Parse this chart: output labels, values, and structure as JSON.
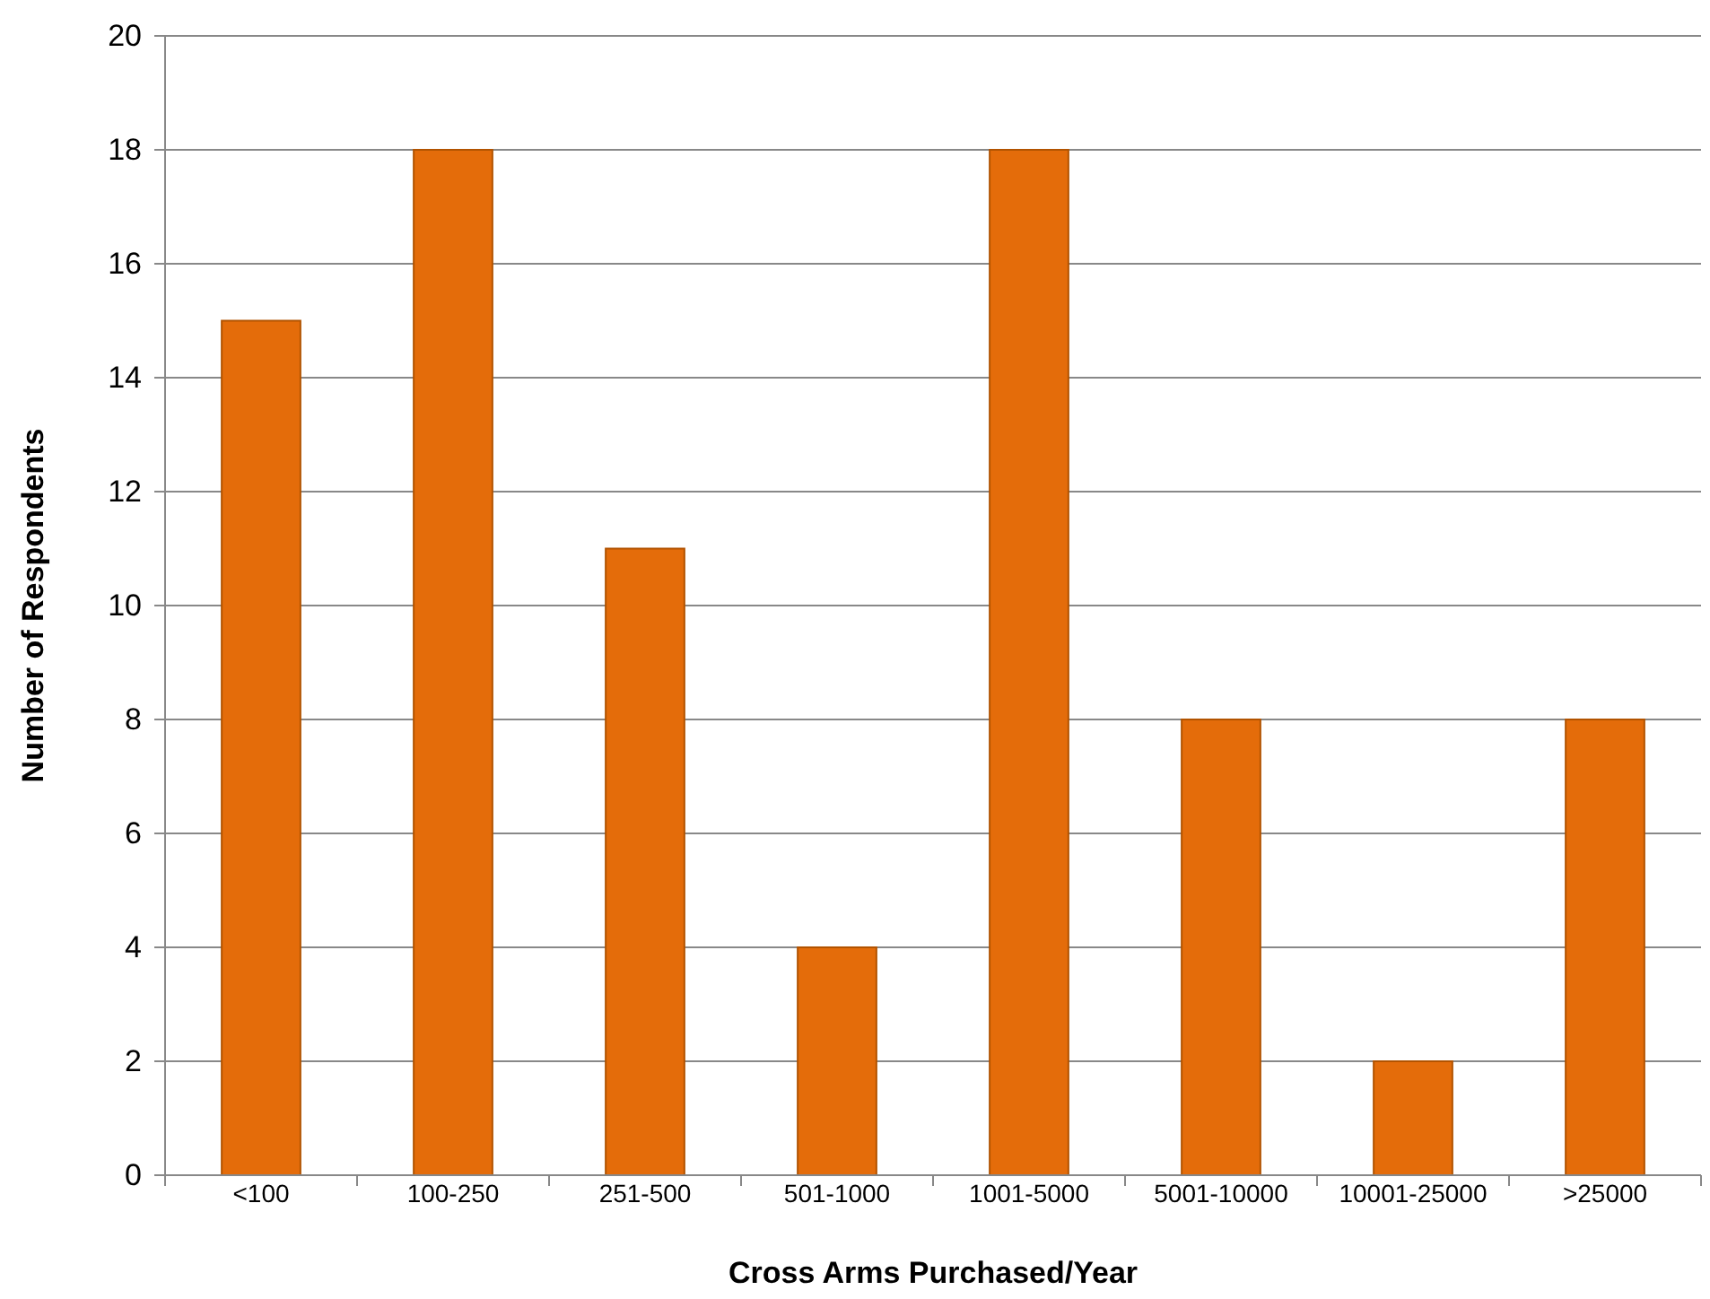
{
  "chart_data": {
    "type": "bar",
    "xlabel": "Cross Arms Purchased/Year",
    "ylabel": "Number of Respondents",
    "categories": [
      "<100",
      "100-250",
      "251-500",
      "501-1000",
      "1001-5000",
      "5001-10000",
      "10001-25000",
      ">25000"
    ],
    "values": [
      15,
      18,
      11,
      4,
      18,
      8,
      2,
      8
    ],
    "color": "#e46c0a",
    "ylim": [
      0,
      20
    ],
    "yticks": [
      0,
      2,
      4,
      6,
      8,
      10,
      12,
      14,
      16,
      18,
      20
    ],
    "grid": "y"
  }
}
